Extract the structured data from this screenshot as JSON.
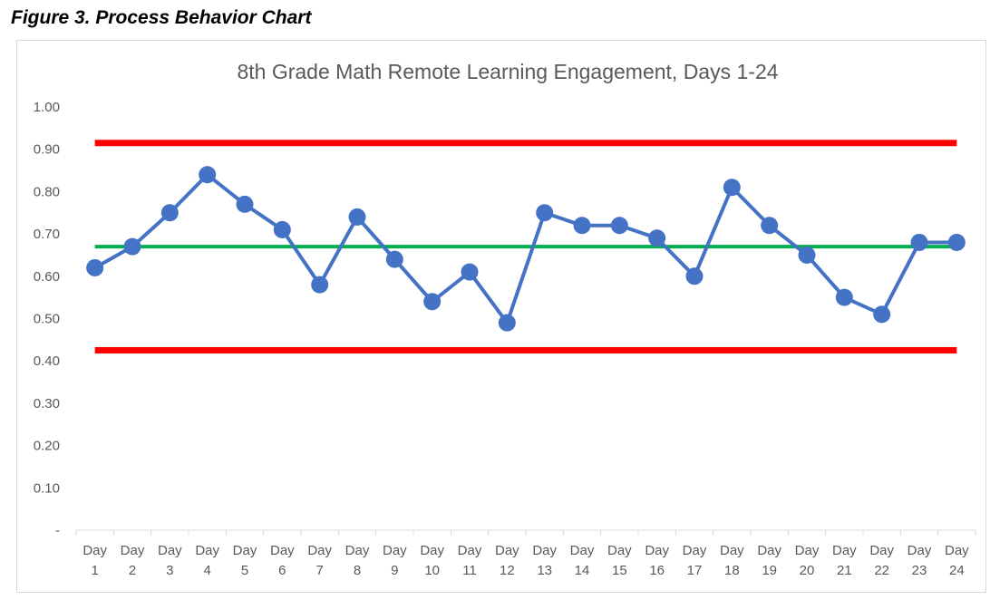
{
  "caption": "Figure 3. Process Behavior Chart",
  "chart_data": {
    "type": "line",
    "title": "8th Grade Math Remote Learning Engagement, Days 1-24",
    "xlabel": "",
    "ylabel": "",
    "ylim": [
      0,
      1.0
    ],
    "yticks": [
      "-",
      "0.10",
      "0.20",
      "0.30",
      "0.40",
      "0.50",
      "0.60",
      "0.70",
      "0.80",
      "0.90",
      "1.00"
    ],
    "categories": [
      {
        "top": "Day",
        "bottom": "1"
      },
      {
        "top": "Day",
        "bottom": "2"
      },
      {
        "top": "Day",
        "bottom": "3"
      },
      {
        "top": "Day",
        "bottom": "4"
      },
      {
        "top": "Day",
        "bottom": "5"
      },
      {
        "top": "Day",
        "bottom": "6"
      },
      {
        "top": "Day",
        "bottom": "7"
      },
      {
        "top": "Day",
        "bottom": "8"
      },
      {
        "top": "Day",
        "bottom": "9"
      },
      {
        "top": "Day",
        "bottom": "10"
      },
      {
        "top": "Day",
        "bottom": "11"
      },
      {
        "top": "Day",
        "bottom": "12"
      },
      {
        "top": "Day",
        "bottom": "13"
      },
      {
        "top": "Day",
        "bottom": "14"
      },
      {
        "top": "Day",
        "bottom": "15"
      },
      {
        "top": "Day",
        "bottom": "16"
      },
      {
        "top": "Day",
        "bottom": "17"
      },
      {
        "top": "Day",
        "bottom": "18"
      },
      {
        "top": "Day",
        "bottom": "19"
      },
      {
        "top": "Day",
        "bottom": "20"
      },
      {
        "top": "Day",
        "bottom": "21"
      },
      {
        "top": "Day",
        "bottom": "22"
      },
      {
        "top": "Day",
        "bottom": "23"
      },
      {
        "top": "Day",
        "bottom": "24"
      }
    ],
    "series": [
      {
        "values": [
          0.62,
          0.67,
          0.75,
          0.84,
          0.77,
          0.71,
          0.58,
          0.74,
          0.64,
          0.54,
          0.61,
          0.49,
          0.75,
          0.72,
          0.72,
          0.69,
          0.6,
          0.81,
          0.72,
          0.65,
          0.55,
          0.51,
          0.68,
          0.68
        ],
        "color": "#4472c4"
      }
    ],
    "reference_lines": [
      {
        "value": 0.915,
        "color": "#ff0000"
      },
      {
        "value": 0.67,
        "color": "#00b050"
      },
      {
        "value": 0.425,
        "color": "#ff0000"
      }
    ],
    "grid": false,
    "legend": "none"
  }
}
